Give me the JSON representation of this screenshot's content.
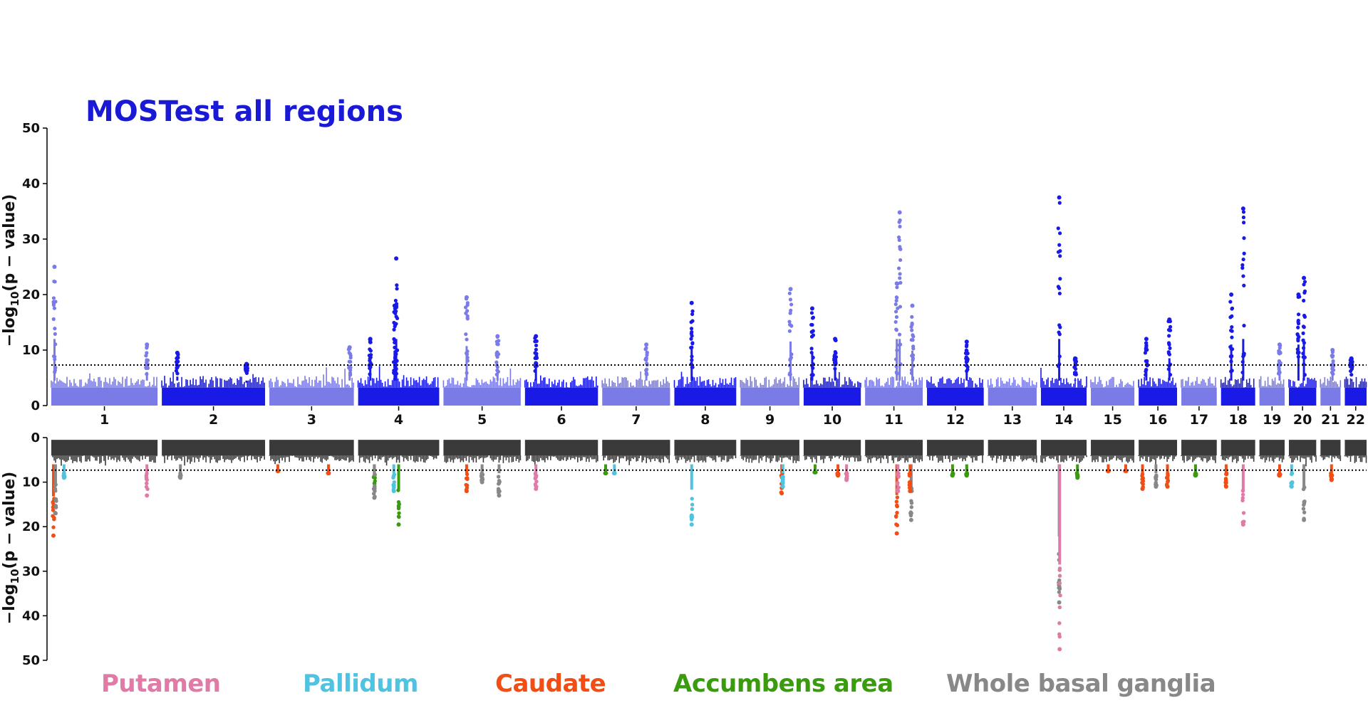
{
  "chart_data": {
    "type": "scatter",
    "subtype": "miami manhattan plot",
    "title": "MOSTest all regions",
    "title_color": "#1a1ad6",
    "ylabel": "−log10(p − value)",
    "ylabel_main": "−log",
    "ylabel_sub": "10",
    "ylabel_tail": "(p − value)",
    "threshold": 7.3,
    "chromosomes": [
      "1",
      "2",
      "3",
      "4",
      "5",
      "6",
      "7",
      "8",
      "9",
      "10",
      "11",
      "12",
      "13",
      "14",
      "15",
      "16",
      "17",
      "18",
      "19",
      "20",
      "21",
      "22"
    ],
    "top_panel": {
      "ylim": [
        0,
        50
      ],
      "yticks": [
        0,
        10,
        20,
        30,
        40,
        50
      ],
      "colors": [
        "#7b7be8",
        "#1a1ae6"
      ],
      "baseline_height": 4.5,
      "peaks": [
        {
          "chr": 1,
          "pos": 0.03,
          "max": 25.0
        },
        {
          "chr": 1,
          "pos": 0.9,
          "max": 11.0
        },
        {
          "chr": 2,
          "pos": 0.15,
          "max": 9.5
        },
        {
          "chr": 2,
          "pos": 0.82,
          "max": 7.5
        },
        {
          "chr": 3,
          "pos": 0.95,
          "max": 10.5
        },
        {
          "chr": 4,
          "pos": 0.15,
          "max": 12.0
        },
        {
          "chr": 4,
          "pos": 0.47,
          "max": 26.5
        },
        {
          "chr": 4,
          "pos": 0.45,
          "max": 18.0
        },
        {
          "chr": 5,
          "pos": 0.3,
          "max": 19.5
        },
        {
          "chr": 5,
          "pos": 0.7,
          "max": 12.5
        },
        {
          "chr": 6,
          "pos": 0.15,
          "max": 12.5
        },
        {
          "chr": 7,
          "pos": 0.65,
          "max": 11.0
        },
        {
          "chr": 8,
          "pos": 0.28,
          "max": 18.5
        },
        {
          "chr": 9,
          "pos": 0.85,
          "max": 21.0
        },
        {
          "chr": 10,
          "pos": 0.15,
          "max": 17.5
        },
        {
          "chr": 10,
          "pos": 0.55,
          "max": 12.0
        },
        {
          "chr": 11,
          "pos": 0.6,
          "max": 34.8
        },
        {
          "chr": 11,
          "pos": 0.55,
          "max": 22.0
        },
        {
          "chr": 11,
          "pos": 0.82,
          "max": 18.0
        },
        {
          "chr": 12,
          "pos": 0.7,
          "max": 11.5
        },
        {
          "chr": 14,
          "pos": 0.4,
          "max": 37.5
        },
        {
          "chr": 14,
          "pos": 0.75,
          "max": 8.5
        },
        {
          "chr": 16,
          "pos": 0.2,
          "max": 12.0
        },
        {
          "chr": 16,
          "pos": 0.8,
          "max": 15.5
        },
        {
          "chr": 18,
          "pos": 0.3,
          "max": 20.0
        },
        {
          "chr": 18,
          "pos": 0.65,
          "max": 35.5
        },
        {
          "chr": 19,
          "pos": 0.8,
          "max": 11.0
        },
        {
          "chr": 20,
          "pos": 0.35,
          "max": 20.0
        },
        {
          "chr": 20,
          "pos": 0.55,
          "max": 23.0
        },
        {
          "chr": 21,
          "pos": 0.6,
          "max": 10.0
        },
        {
          "chr": 22,
          "pos": 0.3,
          "max": 8.5
        }
      ]
    },
    "bottom_panel": {
      "ylim": [
        0,
        50
      ],
      "yticks": [
        0,
        10,
        20,
        30,
        40,
        50
      ],
      "inverted": true,
      "background_color": "#3a3a3a",
      "baseline_height": 5.0,
      "series": [
        {
          "name": "Putamen",
          "color": "#e07aa6"
        },
        {
          "name": "Pallidum",
          "color": "#4fc3e0"
        },
        {
          "name": "Caudate",
          "color": "#f04e14"
        },
        {
          "name": "Accumbens area",
          "color": "#3a9b0f"
        },
        {
          "name": "Whole basal ganglia",
          "color": "#888888"
        }
      ],
      "hits": [
        {
          "chr": 1,
          "pos": 0.02,
          "region": "Caudate",
          "max": 22.0
        },
        {
          "chr": 1,
          "pos": 0.04,
          "region": "Whole basal ganglia",
          "max": 17.0
        },
        {
          "chr": 1,
          "pos": 0.12,
          "region": "Pallidum",
          "max": 9.0
        },
        {
          "chr": 1,
          "pos": 0.9,
          "region": "Putamen",
          "max": 13.0
        },
        {
          "chr": 2,
          "pos": 0.18,
          "region": "Whole basal ganglia",
          "max": 9.0
        },
        {
          "chr": 3,
          "pos": 0.1,
          "region": "Caudate",
          "max": 7.5
        },
        {
          "chr": 3,
          "pos": 0.7,
          "region": "Caudate",
          "max": 8.0
        },
        {
          "chr": 4,
          "pos": 0.2,
          "region": "Accumbens area",
          "max": 11.5
        },
        {
          "chr": 4,
          "pos": 0.2,
          "region": "Whole basal ganglia",
          "max": 13.5
        },
        {
          "chr": 4,
          "pos": 0.44,
          "region": "Pallidum",
          "max": 12.0
        },
        {
          "chr": 4,
          "pos": 0.5,
          "region": "Accumbens area",
          "max": 19.5
        },
        {
          "chr": 5,
          "pos": 0.3,
          "region": "Caudate",
          "max": 12.0
        },
        {
          "chr": 5,
          "pos": 0.5,
          "region": "Whole basal ganglia",
          "max": 10.0
        },
        {
          "chr": 5,
          "pos": 0.72,
          "region": "Whole basal ganglia",
          "max": 13.0
        },
        {
          "chr": 6,
          "pos": 0.15,
          "region": "Putamen",
          "max": 11.5
        },
        {
          "chr": 7,
          "pos": 0.05,
          "region": "Accumbens area",
          "max": 8.0
        },
        {
          "chr": 7,
          "pos": 0.18,
          "region": "Pallidum",
          "max": 8.0
        },
        {
          "chr": 8,
          "pos": 0.28,
          "region": "Pallidum",
          "max": 19.5
        },
        {
          "chr": 9,
          "pos": 0.7,
          "region": "Caudate",
          "max": 12.5
        },
        {
          "chr": 9,
          "pos": 0.72,
          "region": "Pallidum",
          "max": 11.0
        },
        {
          "chr": 10,
          "pos": 0.2,
          "region": "Accumbens area",
          "max": 7.8
        },
        {
          "chr": 10,
          "pos": 0.6,
          "region": "Caudate",
          "max": 8.5
        },
        {
          "chr": 10,
          "pos": 0.75,
          "region": "Putamen",
          "max": 9.5
        },
        {
          "chr": 11,
          "pos": 0.55,
          "region": "Caudate",
          "max": 21.5
        },
        {
          "chr": 11,
          "pos": 0.57,
          "region": "Putamen",
          "max": 12.0
        },
        {
          "chr": 11,
          "pos": 0.8,
          "region": "Whole basal ganglia",
          "max": 18.5
        },
        {
          "chr": 11,
          "pos": 0.78,
          "region": "Caudate",
          "max": 12.0
        },
        {
          "chr": 12,
          "pos": 0.45,
          "region": "Accumbens area",
          "max": 8.5
        },
        {
          "chr": 12,
          "pos": 0.7,
          "region": "Accumbens area",
          "max": 8.5
        },
        {
          "chr": 14,
          "pos": 0.4,
          "region": "Whole basal ganglia",
          "max": 37.0
        },
        {
          "chr": 14,
          "pos": 0.41,
          "region": "Putamen",
          "max": 47.5
        },
        {
          "chr": 14,
          "pos": 0.8,
          "region": "Accumbens area",
          "max": 9.0
        },
        {
          "chr": 15,
          "pos": 0.4,
          "region": "Caudate",
          "max": 7.5
        },
        {
          "chr": 15,
          "pos": 0.8,
          "region": "Caudate",
          "max": 7.5
        },
        {
          "chr": 16,
          "pos": 0.1,
          "region": "Caudate",
          "max": 11.5
        },
        {
          "chr": 16,
          "pos": 0.45,
          "region": "Whole basal ganglia",
          "max": 11.0
        },
        {
          "chr": 16,
          "pos": 0.75,
          "region": "Caudate",
          "max": 11.0
        },
        {
          "chr": 17,
          "pos": 0.4,
          "region": "Accumbens area",
          "max": 8.5
        },
        {
          "chr": 18,
          "pos": 0.15,
          "region": "Caudate",
          "max": 11.0
        },
        {
          "chr": 18,
          "pos": 0.65,
          "region": "Putamen",
          "max": 19.5
        },
        {
          "chr": 19,
          "pos": 0.8,
          "region": "Caudate",
          "max": 8.5
        },
        {
          "chr": 20,
          "pos": 0.1,
          "region": "Pallidum",
          "max": 11.0
        },
        {
          "chr": 20,
          "pos": 0.55,
          "region": "Whole basal ganglia",
          "max": 18.5
        },
        {
          "chr": 21,
          "pos": 0.55,
          "region": "Caudate",
          "max": 9.5
        }
      ]
    },
    "legend": [
      {
        "name": "Putamen",
        "color": "#e07aa6"
      },
      {
        "name": "Pallidum",
        "color": "#4fc3e0"
      },
      {
        "name": "Caudate",
        "color": "#f04e14"
      },
      {
        "name": "Accumbens area",
        "color": "#3a9b0f"
      },
      {
        "name": "Whole basal ganglia",
        "color": "#888888"
      }
    ]
  }
}
